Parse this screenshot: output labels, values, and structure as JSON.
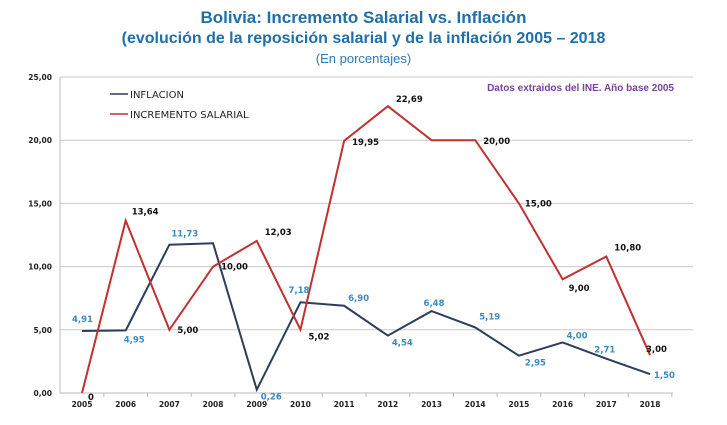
{
  "chart_data": {
    "type": "line",
    "title": "Bolivia: Incremento Salarial vs. Inflación",
    "subtitle": "(evolución de la reposición salarial y de la inflación 2005 – 2018",
    "subtitle2": "(En porcentajes)",
    "note": "Datos extraidos del INE. Año base 2005",
    "xlabel": "",
    "ylabel": "",
    "ylim": [
      0,
      25
    ],
    "yticks": [
      "0,00",
      "5,00",
      "10,00",
      "15,00",
      "20,00",
      "25,00"
    ],
    "ytick_values": [
      0,
      5,
      10,
      15,
      20,
      25
    ],
    "grid": true,
    "legend_position": "top-left",
    "x": [
      "2005",
      "2006",
      "2007",
      "2008",
      "2009",
      "2010",
      "2011",
      "2012",
      "2013",
      "2014",
      "2015",
      "2016",
      "2017",
      "2018"
    ],
    "series": [
      {
        "name": "INFLACION",
        "color": "#2e3d5c",
        "label_color": "#3b8ac4",
        "values": [
          4.91,
          4.95,
          11.73,
          11.85,
          0.26,
          7.18,
          6.9,
          4.54,
          6.48,
          5.19,
          2.95,
          4.0,
          2.71,
          1.5
        ],
        "labels": [
          "4,91",
          "4,95",
          "11,73",
          "",
          "0,26",
          "7,18",
          "6,90",
          "4,54",
          "6,48",
          "5,19",
          "2,95",
          "4,00",
          "2,71",
          "1,50"
        ]
      },
      {
        "name": "INCREMENTO SALARIAL",
        "color": "#c0312f",
        "label_color": "#111111",
        "values": [
          0,
          13.64,
          5.0,
          10.0,
          12.03,
          5.02,
          19.95,
          22.69,
          20.0,
          20.0,
          15.0,
          9.0,
          10.8,
          3.0
        ],
        "labels": [
          "0",
          "13,64",
          "5,00",
          "10,00",
          "12,03",
          "5,02",
          "19,95",
          "22,69",
          "",
          "20,00",
          "15,00",
          "9,00",
          "10,80",
          "3,00"
        ]
      }
    ]
  }
}
